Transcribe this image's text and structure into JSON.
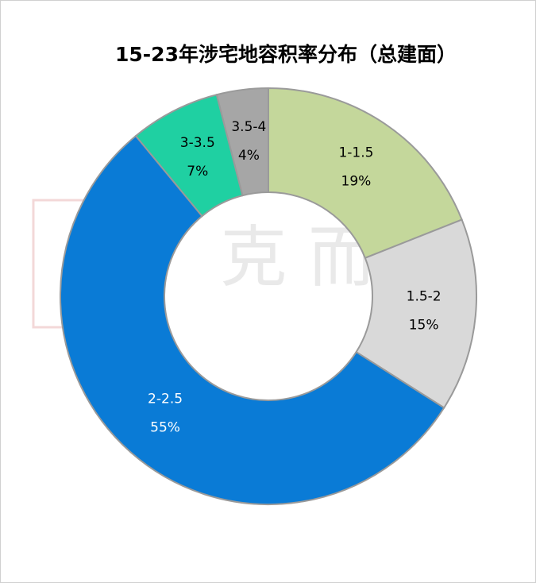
{
  "chart_data": {
    "type": "donut",
    "title": "15-23年涉宅地容积率分布（总建面）",
    "watermark": "克 而 瑞",
    "categories": [
      "1-1.5",
      "1.5-2",
      "2-2.5",
      "3-3.5",
      "3.5-4"
    ],
    "values": [
      19,
      15,
      55,
      7,
      4
    ],
    "value_labels": [
      "19%",
      "15%",
      "55%",
      "7%",
      "4%"
    ],
    "colors": [
      "#c4d79b",
      "#d9d9d9",
      "#0a7bd6",
      "#1fd0a2",
      "#a6a6a6"
    ],
    "label_colors": [
      "#000000",
      "#000000",
      "#ffffff",
      "#000000",
      "#000000"
    ]
  }
}
